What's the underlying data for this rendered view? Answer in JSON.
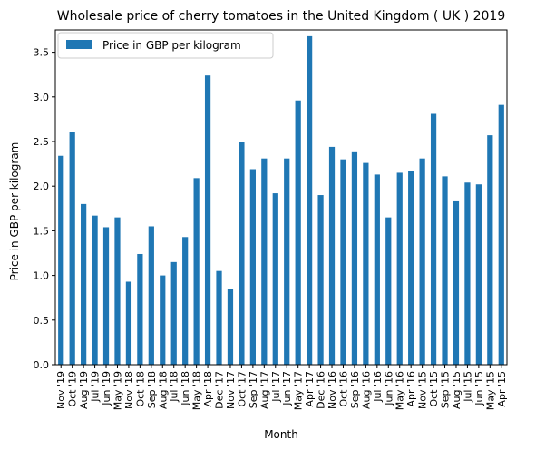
{
  "chart_data": {
    "type": "bar",
    "title": "Wholesale price of cherry tomatoes in the United Kingdom ( UK ) 2019",
    "xlabel": "Month",
    "ylabel": "Price in GBP per kilogram",
    "ylim": [
      0,
      3.75
    ],
    "yticks": [
      "0.0",
      "0.5",
      "1.0",
      "1.5",
      "2.0",
      "2.5",
      "3.0",
      "3.5"
    ],
    "grid": false,
    "legend_position": "top-left",
    "color": "#1f77b4",
    "categories": [
      "Nov '19",
      "Oct '19",
      "Aug '19",
      "Jul '19",
      "Jun '19",
      "May '19",
      "Nov '18",
      "Oct '18",
      "Sep '18",
      "Aug '18",
      "Jul '18",
      "Jun '18",
      "May '18",
      "Apr '18",
      "Dec '17",
      "Nov '17",
      "Oct '17",
      "Sep '17",
      "Aug '17",
      "Jul '17",
      "Jun '17",
      "May '17",
      "Apr '17",
      "Dec '16",
      "Nov '16",
      "Oct '16",
      "Sep '16",
      "Aug '16",
      "Jul '16",
      "Jun '16",
      "May '16",
      "Apr '16",
      "Nov '15",
      "Oct '15",
      "Sep '15",
      "Aug '15",
      "Jul '15",
      "Jun '15",
      "May '15",
      "Apr '15"
    ],
    "series": [
      {
        "name": "Price in GBP per kilogram",
        "values": [
          2.34,
          2.61,
          1.8,
          1.67,
          1.54,
          1.65,
          0.93,
          1.24,
          1.55,
          1.0,
          1.15,
          1.43,
          2.09,
          3.24,
          1.05,
          0.85,
          2.49,
          2.19,
          2.31,
          1.92,
          2.31,
          2.96,
          3.68,
          1.9,
          2.44,
          2.3,
          2.39,
          2.26,
          2.13,
          1.65,
          2.15,
          2.17,
          2.31,
          2.81,
          2.11,
          1.84,
          2.04,
          2.02,
          2.57,
          2.91
        ]
      }
    ]
  }
}
